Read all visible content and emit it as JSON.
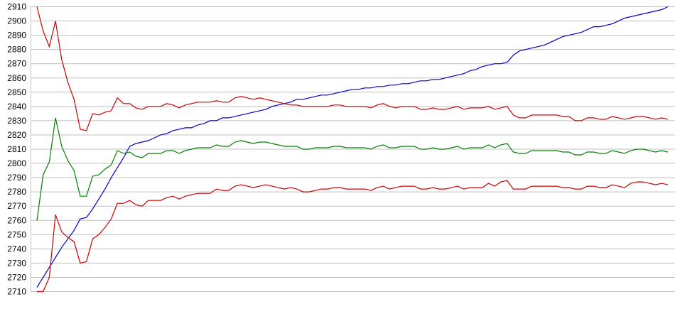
{
  "chart_data": {
    "type": "line",
    "title": "",
    "xlabel": "",
    "ylabel": "",
    "ylim": [
      2710,
      2910
    ],
    "ytick_step": 10,
    "yticks": [
      "2910",
      "2900",
      "2890",
      "2880",
      "2870",
      "2860",
      "2850",
      "2840",
      "2830",
      "2820",
      "2810",
      "2800",
      "2790",
      "2780",
      "2770",
      "2760",
      "2750",
      "2740",
      "2730",
      "2720",
      "2710"
    ],
    "grid": "horizontal",
    "legend": "none",
    "series": [
      {
        "color": "#0000cc",
        "values": [
          2713,
          2720,
          2727,
          2734,
          2741,
          2747,
          2753,
          2761,
          2762,
          2768,
          2775,
          2782,
          2790,
          2797,
          2804,
          2812,
          2814,
          2815,
          2816,
          2818,
          2820,
          2821,
          2823,
          2824,
          2825,
          2825,
          2827,
          2828,
          2830,
          2830,
          2832,
          2832,
          2833,
          2834,
          2835,
          2836,
          2837,
          2838,
          2840,
          2841,
          2842,
          2843,
          2845,
          2845,
          2846,
          2847,
          2848,
          2848,
          2849,
          2850,
          2851,
          2852,
          2852,
          2853,
          2853,
          2854,
          2854,
          2855,
          2855,
          2856,
          2856,
          2857,
          2858,
          2858,
          2859,
          2859,
          2860,
          2861,
          2862,
          2863,
          2865,
          2866,
          2868,
          2869,
          2870,
          2870,
          2871,
          2876,
          2879,
          2880,
          2881,
          2882,
          2883,
          2885,
          2887,
          2889,
          2890,
          2891,
          2892,
          2894,
          2896,
          2896,
          2897,
          2898,
          2900,
          2902,
          2903,
          2904,
          2905,
          2906,
          2907,
          2908,
          2910
        ]
      },
      {
        "color": "#cc0000",
        "values": [
          2910,
          2893,
          2882,
          2900,
          2873,
          2857,
          2845,
          2824,
          2823,
          2835,
          2834,
          2836,
          2837,
          2846,
          2842,
          2842,
          2839,
          2838,
          2840,
          2840,
          2840,
          2842,
          2841,
          2839,
          2841,
          2842,
          2843,
          2843,
          2843,
          2844,
          2843,
          2843,
          2846,
          2847,
          2846,
          2845,
          2846,
          2845,
          2844,
          2843,
          2842,
          2841,
          2841,
          2840,
          2840,
          2840,
          2840,
          2840,
          2841,
          2841,
          2840,
          2840,
          2840,
          2840,
          2839,
          2841,
          2842,
          2840,
          2839,
          2840,
          2840,
          2840,
          2838,
          2838,
          2839,
          2838,
          2838,
          2839,
          2840,
          2838,
          2839,
          2839,
          2839,
          2840,
          2838,
          2839,
          2840,
          2834,
          2832,
          2832,
          2834,
          2834,
          2834,
          2834,
          2834,
          2833,
          2833,
          2830,
          2830,
          2832,
          2832,
          2831,
          2831,
          2833,
          2832,
          2831,
          2832,
          2833,
          2833,
          2832,
          2831,
          2832,
          2831
        ]
      },
      {
        "color": "#008000",
        "values": [
          2760,
          2792,
          2801,
          2832,
          2812,
          2802,
          2795,
          2777,
          2777,
          2791,
          2792,
          2796,
          2799,
          2809,
          2807,
          2808,
          2805,
          2804,
          2807,
          2807,
          2807,
          2809,
          2809,
          2807,
          2809,
          2810,
          2811,
          2811,
          2811,
          2813,
          2812,
          2812,
          2815,
          2816,
          2815,
          2814,
          2815,
          2815,
          2814,
          2813,
          2812,
          2812,
          2812,
          2810,
          2810,
          2811,
          2811,
          2811,
          2812,
          2812,
          2811,
          2811,
          2811,
          2811,
          2810,
          2812,
          2813,
          2811,
          2811,
          2812,
          2812,
          2812,
          2810,
          2810,
          2811,
          2810,
          2810,
          2811,
          2812,
          2810,
          2811,
          2811,
          2811,
          2813,
          2811,
          2813,
          2814,
          2808,
          2807,
          2807,
          2809,
          2809,
          2809,
          2809,
          2809,
          2808,
          2808,
          2806,
          2806,
          2808,
          2808,
          2807,
          2807,
          2809,
          2808,
          2807,
          2809,
          2810,
          2810,
          2809,
          2808,
          2809,
          2808
        ]
      },
      {
        "color": "#cc0000",
        "values": [
          2710,
          2710,
          2720,
          2764,
          2752,
          2748,
          2745,
          2730,
          2731,
          2747,
          2750,
          2755,
          2761,
          2772,
          2772,
          2774,
          2771,
          2770,
          2774,
          2774,
          2774,
          2776,
          2777,
          2775,
          2777,
          2778,
          2779,
          2779,
          2779,
          2782,
          2781,
          2781,
          2784,
          2785,
          2784,
          2783,
          2784,
          2785,
          2784,
          2783,
          2782,
          2783,
          2782,
          2780,
          2780,
          2781,
          2782,
          2782,
          2783,
          2783,
          2782,
          2782,
          2782,
          2782,
          2781,
          2783,
          2784,
          2782,
          2783,
          2784,
          2784,
          2784,
          2782,
          2782,
          2783,
          2782,
          2782,
          2783,
          2784,
          2782,
          2783,
          2783,
          2783,
          2786,
          2784,
          2787,
          2788,
          2782,
          2782,
          2782,
          2784,
          2784,
          2784,
          2784,
          2784,
          2783,
          2783,
          2782,
          2782,
          2784,
          2784,
          2783,
          2783,
          2785,
          2784,
          2783,
          2786,
          2787,
          2787,
          2786,
          2785,
          2786,
          2785
        ]
      }
    ]
  }
}
